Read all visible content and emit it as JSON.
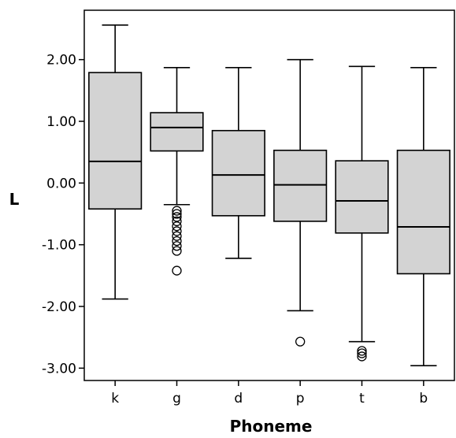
{
  "chart_data": {
    "type": "box",
    "title": "",
    "xlabel": "Phoneme",
    "ylabel": "L",
    "ylim": [
      -3.2,
      2.8
    ],
    "yticks": [
      2.0,
      1.0,
      0.0,
      -1.0,
      -2.0,
      -3.0
    ],
    "ytick_labels": [
      "2.00",
      "1.00",
      "0.00",
      "-1.00",
      "-2.00",
      "-3.00"
    ],
    "grid": false,
    "box_color": "#d3d3d3",
    "line_color": "#000000",
    "categories": [
      "k",
      "g",
      "d",
      "p",
      "t",
      "b"
    ],
    "boxes": [
      {
        "category": "k",
        "min": -1.88,
        "q1": -0.42,
        "median": 0.35,
        "q3": 1.79,
        "max": 2.56,
        "outliers": []
      },
      {
        "category": "g",
        "min": -0.35,
        "q1": 0.52,
        "median": 0.9,
        "q3": 1.14,
        "max": 1.87,
        "outliers": [
          -0.45,
          -0.5,
          -0.55,
          -0.62,
          -0.7,
          -0.78,
          -0.86,
          -0.94,
          -1.02,
          -1.1,
          -1.42
        ]
      },
      {
        "category": "d",
        "min": -1.22,
        "q1": -0.53,
        "median": 0.13,
        "q3": 0.85,
        "max": 1.87,
        "outliers": []
      },
      {
        "category": "p",
        "min": -2.07,
        "q1": -0.62,
        "median": -0.03,
        "q3": 0.53,
        "max": 2.0,
        "outliers": [
          -2.57
        ]
      },
      {
        "category": "t",
        "min": -2.57,
        "q1": -0.81,
        "median": -0.29,
        "q3": 0.36,
        "max": 1.89,
        "outliers": [
          -2.72,
          -2.76,
          -2.81
        ]
      },
      {
        "category": "b",
        "min": -2.96,
        "q1": -1.47,
        "median": -0.71,
        "q3": 0.53,
        "max": 1.87,
        "outliers": []
      }
    ]
  }
}
